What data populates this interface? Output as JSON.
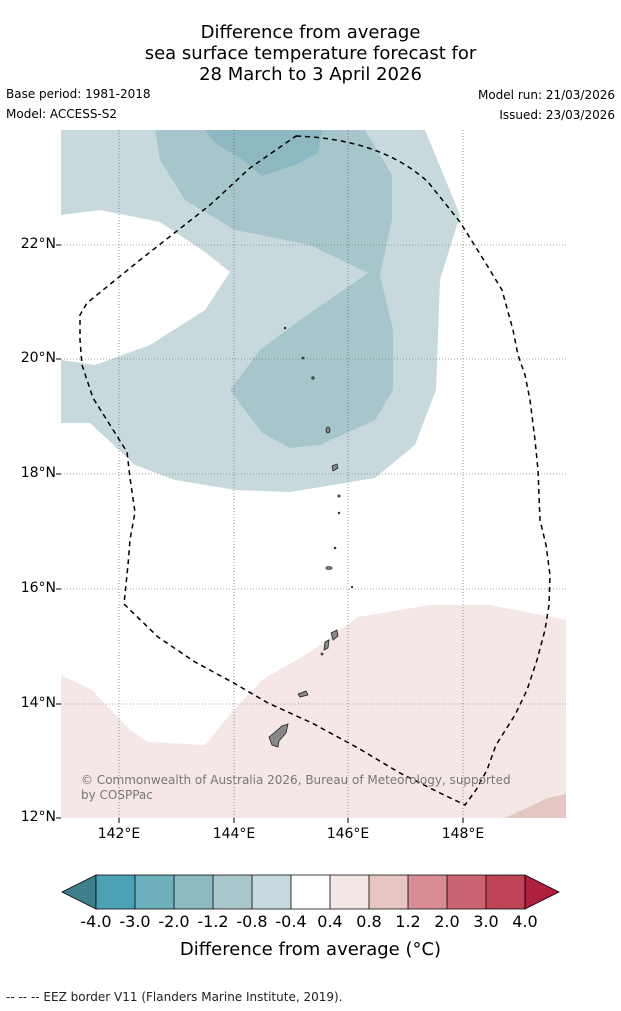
{
  "title": {
    "line1": "Difference from average",
    "line2": "sea surface temperature forecast for",
    "line3": "28 March to 3 April 2026"
  },
  "meta": {
    "base_period": "Base period: 1981-2018",
    "model": "Model: ACCESS-S2",
    "model_run": "Model run: 21/03/2026",
    "issued": "Issued: 23/03/2026"
  },
  "map": {
    "lat_labels": [
      "22°N",
      "20°N",
      "18°N",
      "16°N",
      "14°N",
      "12°N"
    ],
    "lon_labels": [
      "142°E",
      "144°E",
      "146°E",
      "148°E"
    ],
    "copyright_line1": "© Commonwealth of Australia 2026, Bureau of Meteorology, supported",
    "copyright_line2": "by COSPPac",
    "colors": {
      "anom_neg_04_08": "#c8d9de",
      "anom_neg_08_12": "#a7c6cb",
      "anom_neg_12_20": "#8db8c1",
      "anom_pos_04_08": "#f4e7e6",
      "anom_pos_08_12": "#e6c6c3",
      "land": "#888888"
    }
  },
  "colorbar": {
    "ticks": [
      "-4.0",
      "-3.0",
      "-2.0",
      "-1.2",
      "-0.8",
      "-0.4",
      "0.4",
      "0.8",
      "1.2",
      "2.0",
      "3.0",
      "4.0"
    ],
    "colors": [
      "#3f7f8d",
      "#4aa3b5",
      "#6fb0bc",
      "#8db9c3",
      "#a9c7cd",
      "#c6d9de",
      "#ffffff",
      "#f4e6e5",
      "#e6c5c2",
      "#d88d95",
      "#ca6472",
      "#c04458",
      "#b0203e"
    ],
    "label": "Difference from average (°C)"
  },
  "footer": "--  --  -- EEZ border V11 (Flanders Marine Institute, 2019)."
}
